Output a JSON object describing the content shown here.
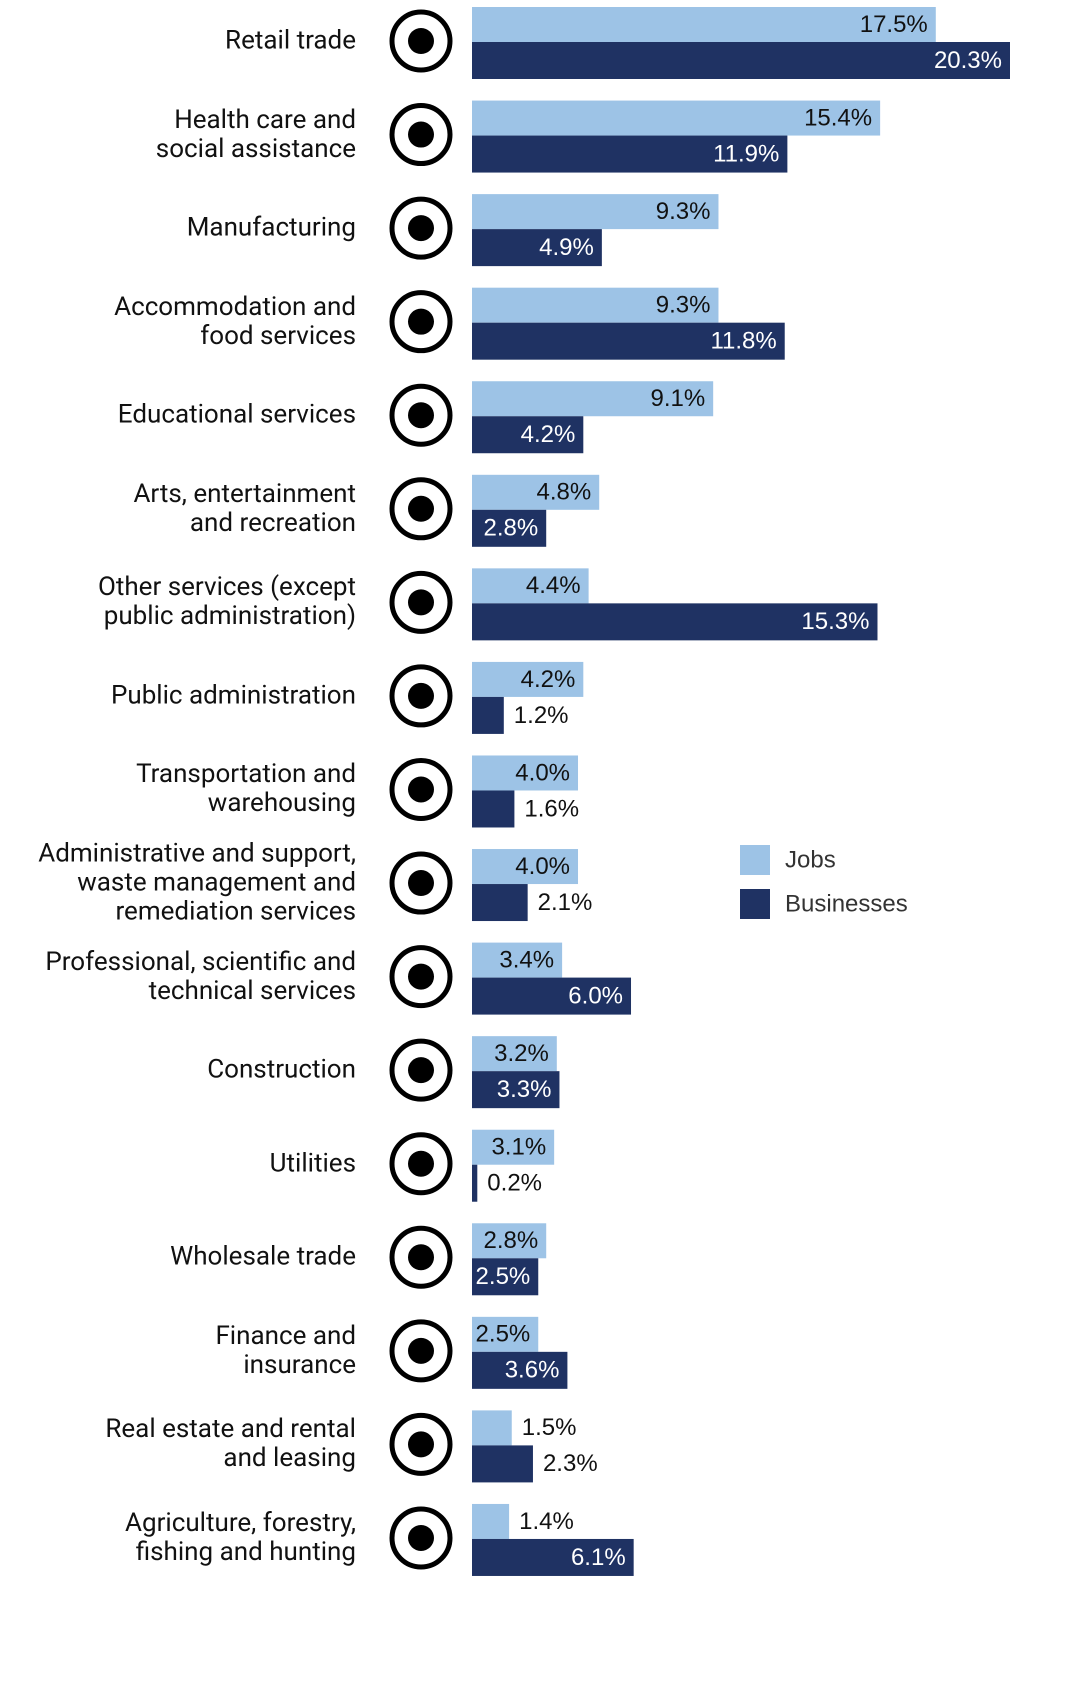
{
  "chart_data": {
    "type": "bar",
    "orientation": "horizontal",
    "categories": [
      "Retail trade",
      "Health care and\nsocial assistance",
      "Manufacturing",
      "Accommodation and\nfood services",
      "Educational services",
      "Arts, entertainment\nand recreation",
      "Other services (except\npublic administration)",
      "Public administration",
      "Transportation and\nwarehousing",
      "Administrative and support,\nwaste management and\nremediation services",
      "Professional, scientific and\ntechnical services",
      "Construction",
      "Utilities",
      "Wholesale trade",
      "Finance and\ninsurance",
      "Real estate and rental\nand leasing",
      "Agriculture, forestry,\nfishing and hunting"
    ],
    "series": [
      {
        "name": "Jobs",
        "color": "#9dc3e6",
        "values": [
          17.5,
          15.4,
          9.3,
          9.3,
          9.1,
          4.8,
          4.4,
          4.2,
          4.0,
          4.0,
          3.4,
          3.2,
          3.1,
          2.8,
          2.5,
          1.5,
          1.4
        ],
        "value_labels": [
          "17.5%",
          "15.4%",
          "9.3%",
          "9.3%",
          "9.1%",
          "4.8%",
          "4.4%",
          "4.2%",
          "4.0%",
          "4.0%",
          "3.4%",
          "3.2%",
          "3.1%",
          "2.8%",
          "2.5%",
          "1.5%",
          "1.4%"
        ]
      },
      {
        "name": "Businesses",
        "color": "#1f3263",
        "values": [
          20.3,
          11.9,
          4.9,
          11.8,
          4.2,
          2.8,
          15.3,
          1.2,
          1.6,
          2.1,
          6.0,
          3.3,
          0.2,
          2.5,
          3.6,
          2.3,
          6.1
        ],
        "value_labels": [
          "20.3%",
          "11.9%",
          "4.9%",
          "11.8%",
          "4.2%",
          "2.8%",
          "15.3%",
          "1.2%",
          "1.6%",
          "2.1%",
          "6.0%",
          "3.3%",
          "0.2%",
          "2.5%",
          "3.6%",
          "2.3%",
          "6.1%"
        ]
      }
    ],
    "legend": "right"
  }
}
